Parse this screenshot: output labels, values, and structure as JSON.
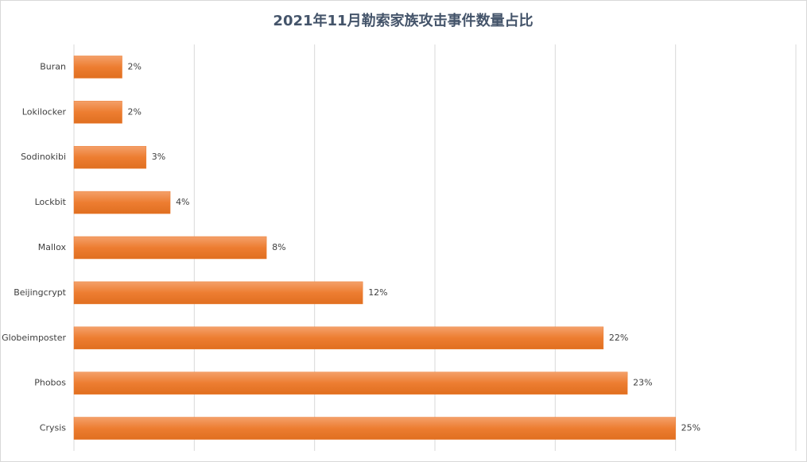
{
  "chart_data": {
    "type": "bar",
    "orientation": "horizontal",
    "title": "2021年11月勒索家族攻击事件数量占比",
    "categories": [
      "Buran",
      "Lokilocker",
      "Sodinokibi",
      "Lockbit",
      "Mallox",
      "Beijingcrypt",
      "Globeimposter",
      "Phobos",
      "Crysis"
    ],
    "values": [
      2,
      2,
      3,
      4,
      8,
      12,
      22,
      23,
      25
    ],
    "value_labels": [
      "2%",
      "2%",
      "3%",
      "4%",
      "8%",
      "12%",
      "22%",
      "23%",
      "25%"
    ],
    "color": "#ed7d31",
    "xlim": [
      0,
      30
    ],
    "xticks": [
      0,
      5,
      10,
      15,
      20,
      25,
      30
    ],
    "tick_labels": false,
    "grid": true
  }
}
